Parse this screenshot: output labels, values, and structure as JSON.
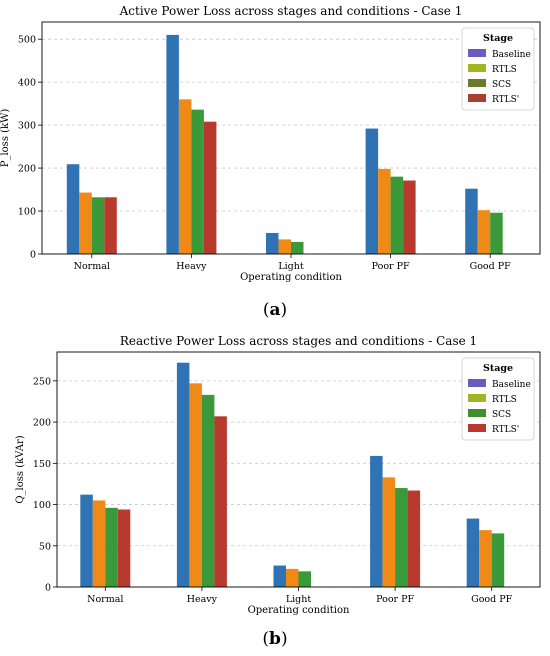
{
  "chart_data": [
    {
      "type": "bar",
      "title": "Active Power Loss across stages and conditions - Case 1",
      "xlabel": "Operating condition",
      "ylabel": "P_loss (kW)",
      "ylim": [
        0,
        540
      ],
      "yticks": [
        0,
        100,
        200,
        300,
        400,
        500
      ],
      "grid": "y-dashed",
      "legend_title": "Stage",
      "legend_position": "top-right",
      "categories": [
        "Normal",
        "Heavy",
        "Light",
        "Poor PF",
        "Good PF"
      ],
      "series": [
        {
          "name": "Baseline",
          "values": [
            209,
            510,
            49,
            292,
            152
          ]
        },
        {
          "name": "RTLS",
          "values": [
            143,
            360,
            34,
            198,
            102
          ]
        },
        {
          "name": "SCS",
          "values": [
            132,
            336,
            28,
            180,
            96
          ]
        },
        {
          "name": "RTLS'",
          "values": [
            132,
            308,
            null,
            171,
            null
          ]
        }
      ],
      "bar_colors": [
        "#2f73b5",
        "#f08a16",
        "#3a9a3a",
        "#b83a2e"
      ],
      "legend_colors": [
        "#6a5bbf",
        "#a3b523",
        "#6b7a2e",
        "#a8402e"
      ],
      "caption": "a"
    },
    {
      "type": "bar",
      "title": "Reactive Power Loss across stages and conditions - Case 1",
      "xlabel": "Operating condition",
      "ylabel": "Q_loss (kVAr)",
      "ylim": [
        0,
        285
      ],
      "yticks": [
        0,
        50,
        100,
        150,
        200,
        250
      ],
      "grid": "y-dashed",
      "legend_title": "Stage",
      "legend_position": "top-right",
      "categories": [
        "Normal",
        "Heavy",
        "Light",
        "Poor PF",
        "Good PF"
      ],
      "series": [
        {
          "name": "Baseline",
          "values": [
            112,
            272,
            26,
            159,
            83
          ]
        },
        {
          "name": "RTLS",
          "values": [
            105,
            247,
            22,
            133,
            69
          ]
        },
        {
          "name": "SCS",
          "values": [
            96,
            233,
            19,
            120,
            65
          ]
        },
        {
          "name": "RTLS'",
          "values": [
            94,
            207,
            null,
            117,
            null
          ]
        }
      ],
      "bar_colors": [
        "#2f73b5",
        "#f08a16",
        "#3a9a3a",
        "#b83a2e"
      ],
      "legend_colors": [
        "#6a5bbf",
        "#a3b523",
        "#3f8f2e",
        "#b83a2e"
      ],
      "caption": "b"
    }
  ]
}
